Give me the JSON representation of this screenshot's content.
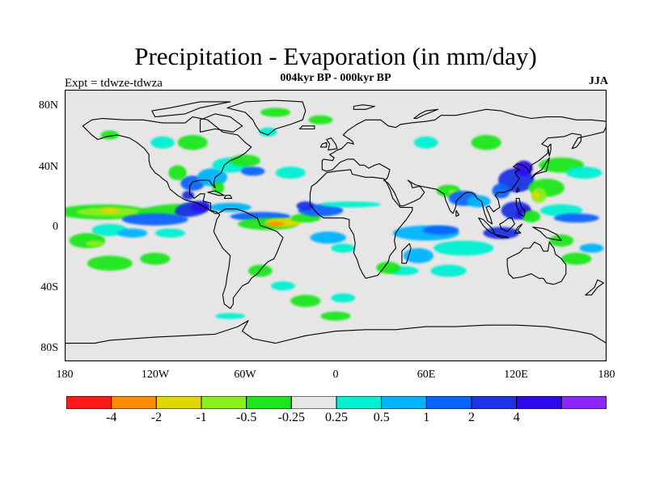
{
  "title": "Precipitation - Evaporation (in mm/day)",
  "subtitle": "004kyr BP - 000kyr BP",
  "experiment": "Expt = tdwze-tdwza",
  "season": "JJA",
  "map": {
    "projection": "cylindrical equidistant",
    "background_color": "#e6e6e6",
    "coastline_color": "#000000",
    "lat_range": [
      -90,
      90
    ],
    "lon_range": [
      -180,
      180
    ],
    "lat_ticks": [
      "80N",
      "40N",
      "0",
      "40S",
      "80S"
    ],
    "lon_ticks": [
      "180",
      "120W",
      "60W",
      "0",
      "60E",
      "120E",
      "180"
    ]
  },
  "colorbar": {
    "colors": [
      "#ff1a1a",
      "#ff8c00",
      "#e1d700",
      "#8cee1e",
      "#1ee61e",
      "#e6e6e6",
      "#00f0d2",
      "#00b4ff",
      "#0a64ff",
      "#1e32e6",
      "#2d0aeb",
      "#8c28ff"
    ],
    "labels": [
      "-4",
      "-2",
      "-1",
      "-0.5",
      "-0.25",
      "0.25",
      "0.5",
      "1",
      "2",
      "4"
    ]
  }
}
